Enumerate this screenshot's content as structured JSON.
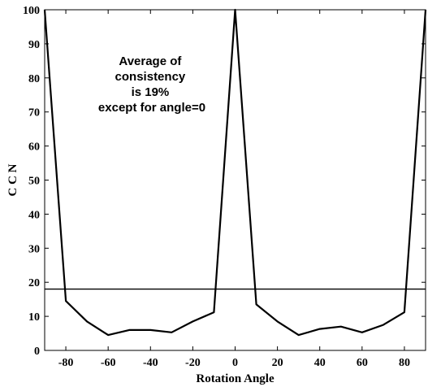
{
  "chart_data": {
    "type": "line",
    "xlabel": "Rotation Angle",
    "ylabel": "C C N",
    "xlim": [
      -90,
      90
    ],
    "ylim": [
      0,
      100
    ],
    "xticks": [
      -80,
      -60,
      -40,
      -20,
      0,
      20,
      40,
      60,
      80
    ],
    "yticks": [
      0,
      10,
      20,
      30,
      40,
      50,
      60,
      70,
      80,
      90,
      100
    ],
    "grid": false,
    "series": [
      {
        "x": [
          -90,
          -80,
          -70,
          -60,
          -50,
          -40,
          -30,
          -20,
          -10,
          0,
          10,
          20,
          30,
          40,
          50,
          60,
          70,
          80,
          90
        ],
        "y": [
          100,
          14.5,
          8.5,
          4.5,
          6,
          6,
          5.3,
          8.5,
          11.2,
          100,
          13.5,
          8.5,
          4.5,
          6.3,
          7,
          5.3,
          7.5,
          11.2,
          100
        ],
        "color": "#000000"
      }
    ],
    "reference_line": {
      "y": 18
    },
    "annotation": [
      "Average of",
      "consistency",
      "is 19%",
      "except for angle=0"
    ]
  }
}
